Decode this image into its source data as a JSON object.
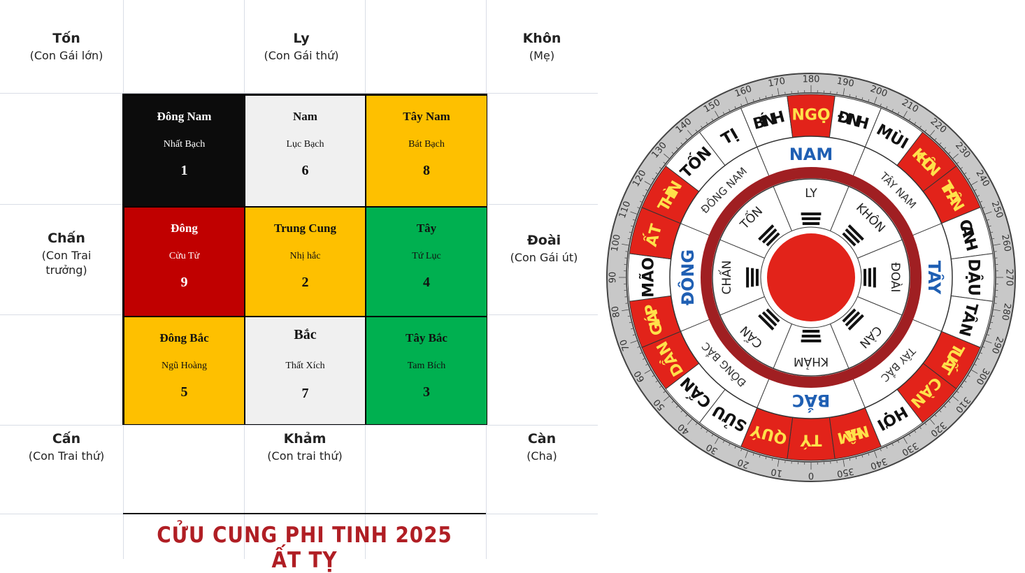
{
  "trigrams": {
    "ton": {
      "name": "Tốn",
      "role": "(Con Gái lớn)"
    },
    "ly": {
      "name": "Ly",
      "role": "(Con Gái thứ)"
    },
    "khon": {
      "name": "Khôn",
      "role": "(Mẹ)"
    },
    "chan": {
      "name": "Chấn",
      "role": "(Con Trai trưởng)"
    },
    "doai": {
      "name": "Đoài",
      "role": "(Con Gái út)"
    },
    "can_ne": {
      "name": "Cấn",
      "role": "(Con Trai thứ)"
    },
    "kham": {
      "name": "Khảm",
      "role": "(Con trai thứ)"
    },
    "can_nw": {
      "name": "Càn",
      "role": "(Cha)"
    }
  },
  "grid": [
    {
      "direction": "Đông Nam",
      "star": "Nhất Bạch",
      "number": "1",
      "color": "#0c0c0c",
      "text_color": "#ffffff"
    },
    {
      "direction": "Nam",
      "star": "Lục Bạch",
      "number": "6",
      "color": "#f0f0f0",
      "text_color": "#111111"
    },
    {
      "direction": "Tây Nam",
      "star": "Bát Bạch",
      "number": "8",
      "color": "#fec000",
      "text_color": "#111111"
    },
    {
      "direction": "Đông",
      "star": "Cửu Tử",
      "number": "9",
      "color": "#c00000",
      "text_color": "#ffffff"
    },
    {
      "direction": "Trung Cung",
      "star": "Nhị hắc",
      "number": "2",
      "color": "#fec000",
      "text_color": "#111111"
    },
    {
      "direction": "Tây",
      "star": "Tứ Lục",
      "number": "4",
      "color": "#00b050",
      "text_color": "#111111"
    },
    {
      "direction": "Đông Bắc",
      "star": "Ngũ Hoàng",
      "number": "5",
      "color": "#fec000",
      "text_color": "#111111"
    },
    {
      "direction": "Bắc",
      "star": "Thất Xích",
      "number": "7",
      "color": "#f0f0f0",
      "text_color": "#111111"
    },
    {
      "direction": "Tây Bắc",
      "star": "Tam Bích",
      "number": "3",
      "color": "#00b050",
      "text_color": "#111111"
    }
  ],
  "title": "CỬU CUNG PHI TINH 2025 ẤT TỴ",
  "compass": {
    "degree_labels": [
      "0",
      "10",
      "20",
      "30",
      "40",
      "50",
      "60",
      "70",
      "80",
      "90",
      "100",
      "110",
      "120",
      "130",
      "140",
      "150",
      "160",
      "170",
      "180",
      "190",
      "200",
      "210",
      "220",
      "230",
      "240",
      "250",
      "260",
      "270",
      "280",
      "290",
      "300",
      "310",
      "320",
      "330",
      "340",
      "350"
    ],
    "mountains": [
      {
        "label": "TÝ",
        "red": true
      },
      {
        "label": "QUÝ",
        "red": true
      },
      {
        "label": "SỬU",
        "red": false
      },
      {
        "label": "CẤN",
        "red": false
      },
      {
        "label": "DẦN",
        "red": true
      },
      {
        "label": "GIÁP",
        "red": true
      },
      {
        "label": "MÃO",
        "red": false
      },
      {
        "label": "ẤT",
        "red": true
      },
      {
        "label": "THÌN",
        "red": true
      },
      {
        "label": "TỐN",
        "red": false
      },
      {
        "label": "TỊ",
        "red": false
      },
      {
        "label": "BÍNH",
        "red": false
      },
      {
        "label": "NGỌ",
        "red": true
      },
      {
        "label": "ĐINH",
        "red": false
      },
      {
        "label": "MÙI",
        "red": false
      },
      {
        "label": "KHÔN",
        "red": true
      },
      {
        "label": "THÂN",
        "red": true
      },
      {
        "label": "CANH",
        "red": false
      },
      {
        "label": "DẬU",
        "red": false
      },
      {
        "label": "TÂN",
        "red": false
      },
      {
        "label": "TUẤT",
        "red": true
      },
      {
        "label": "CÀN",
        "red": true
      },
      {
        "label": "HỢI",
        "red": false
      },
      {
        "label": "NHÂM",
        "red": true
      }
    ],
    "directions": {
      "north": "BẮC",
      "south": "NAM",
      "east": "ĐÔNG",
      "west": "TÂY"
    },
    "ordinals": {
      "southeast": "ĐÔNG NAM",
      "southwest": "TÂY NAM",
      "northeast": "ĐÔNG BẮC",
      "northwest": "TÂY BẮC"
    },
    "inner_trigrams": {
      "s": "LY",
      "sw": "KHÔN",
      "w": "ĐOÀI",
      "nw": "CÀN",
      "n": "KHẢM",
      "ne": "CẤN",
      "e": "CHẤN",
      "se": "TỐN"
    },
    "colors": {
      "red": "#e2231a",
      "dark_red": "#a01f22",
      "ring_gray": "#c8c8c8",
      "blue": "#1f5fb3"
    }
  }
}
